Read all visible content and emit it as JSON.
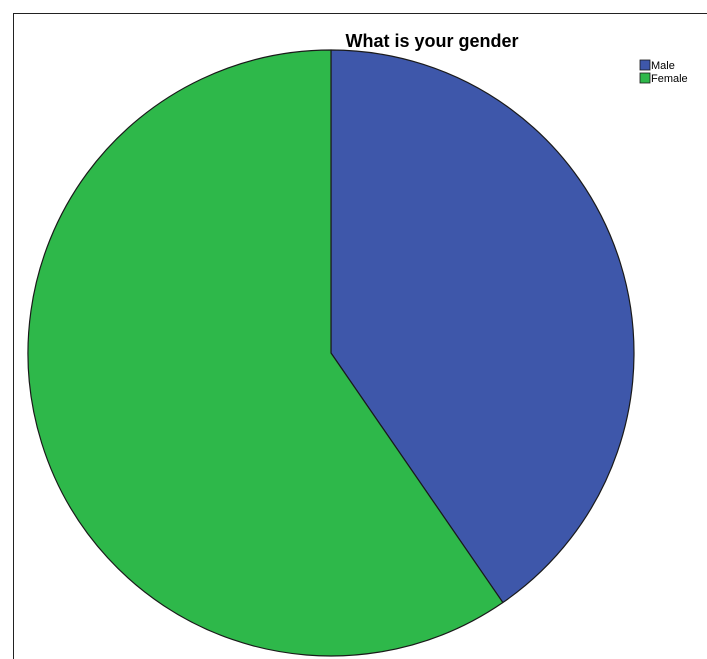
{
  "chart_data": {
    "type": "pie",
    "title": "What is your gender",
    "categories": [
      "Male",
      "Female"
    ],
    "values": [
      40.4,
      59.6
    ],
    "colors": [
      "#3e57aa",
      "#2eb84a"
    ],
    "start_angle_deg": 0,
    "direction": "clockwise",
    "legend_position": "top-right",
    "slice_border_color": "#1a1a1a"
  }
}
